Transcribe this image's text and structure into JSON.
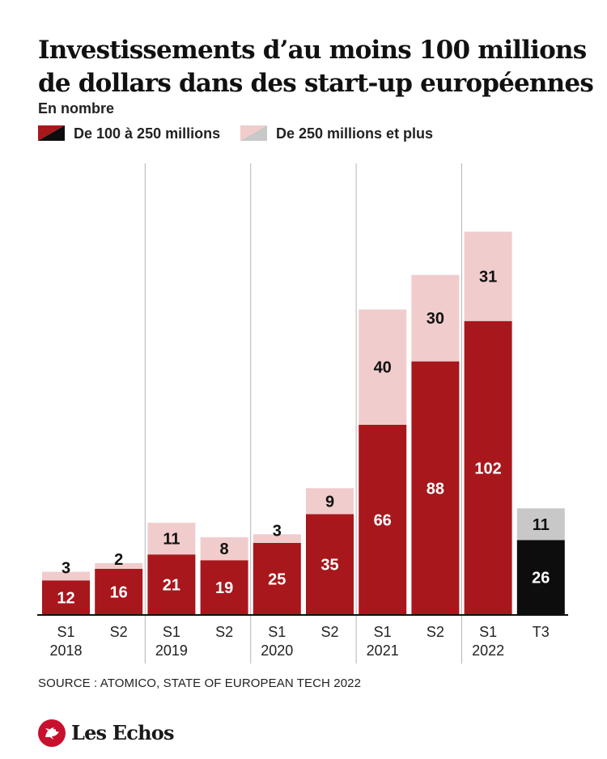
{
  "header": {
    "title_line1": "Investissements d’au moins 100 millions",
    "title_line2": "de dollars dans des start-up européennes",
    "subtitle": "En nombre"
  },
  "colors": {
    "dark_red": "#a8171c",
    "light_pink": "#f1cccd",
    "black": "#0d0d0d",
    "light_gray": "#c8c8c8"
  },
  "chart_data": {
    "type": "bar",
    "stacked": true,
    "categories": [
      "S1 2018",
      "S2",
      "S1 2019",
      "S2",
      "S1 2020",
      "S2",
      "S1 2021",
      "S2",
      "S1 2022",
      "T3"
    ],
    "category_labels": [
      [
        "S1",
        "2018"
      ],
      [
        "S2",
        ""
      ],
      [
        "S1",
        "2019"
      ],
      [
        "S2",
        ""
      ],
      [
        "S1",
        "2020"
      ],
      [
        "S2",
        ""
      ],
      [
        "S1",
        "2021"
      ],
      [
        "S2",
        ""
      ],
      [
        "S1",
        "2022"
      ],
      [
        "T3",
        ""
      ]
    ],
    "series": [
      {
        "name": "De 100 à 250 millions",
        "values": [
          12,
          16,
          21,
          19,
          25,
          35,
          66,
          88,
          102,
          26
        ]
      },
      {
        "name": "De 250 millions et plus",
        "values": [
          3,
          2,
          11,
          8,
          3,
          9,
          40,
          30,
          31,
          11
        ]
      }
    ],
    "highlight_last_category": "T3",
    "ylim": [
      0,
      140
    ],
    "grid": false,
    "year_separators": true,
    "legend_position": "top-left"
  },
  "source": "SOURCE : ATOMICO, STATE OF EUROPEAN TECH 2022",
  "logo": {
    "text": "Les Echos",
    "icon": "rooster-icon"
  }
}
